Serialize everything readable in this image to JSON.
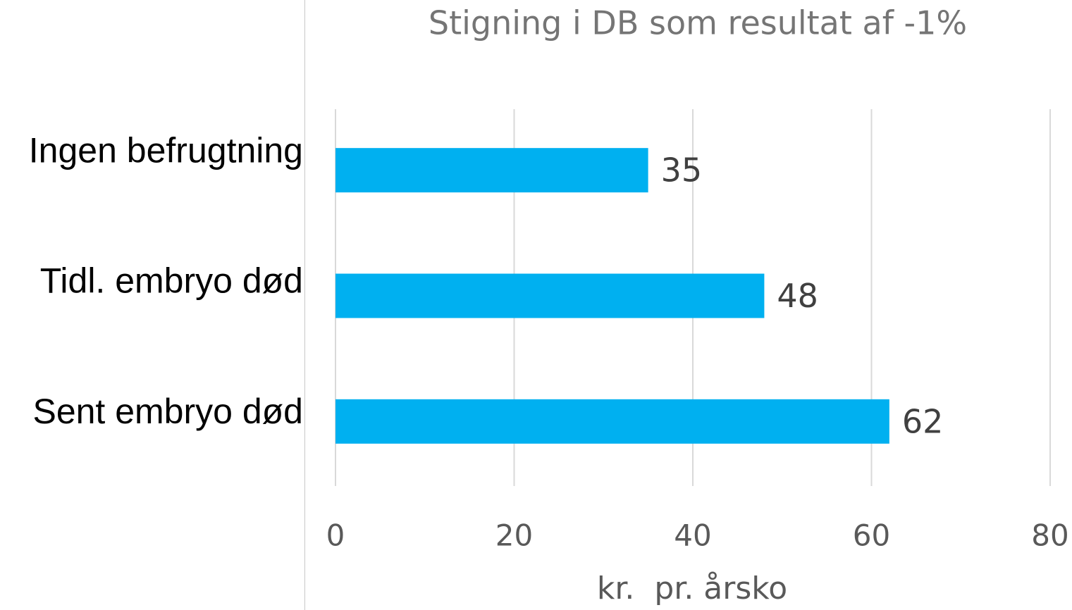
{
  "chart_data": {
    "type": "bar",
    "orientation": "horizontal",
    "title": "Stigning i DB som resultat af -1%",
    "x_label": "kr.  pr. årsko",
    "categories": [
      "Ingen befrugtning",
      "Tidl. embryo død",
      "Sent embryo død"
    ],
    "values": [
      35,
      48,
      62
    ],
    "color": "#00b0f0",
    "xlim": [
      0,
      80
    ],
    "xticks": [
      0,
      20,
      40,
      60,
      80
    ],
    "grid": true
  }
}
